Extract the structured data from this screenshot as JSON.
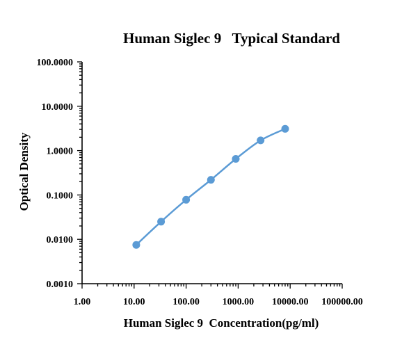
{
  "chart_data": {
    "type": "scatter",
    "title": "Human Siglec 9   Typical Standard",
    "xlabel": "Human Siglec 9  Concentration(pg/ml)",
    "ylabel": "Optical Density",
    "x_scale": "log",
    "y_scale": "log",
    "xlim": [
      1,
      100000
    ],
    "ylim": [
      0.001,
      100
    ],
    "x_tick_labels": [
      "1.00",
      "10.00",
      "100.00",
      "1000.00",
      "10000.00",
      "100000.00"
    ],
    "y_tick_labels": [
      "0.0010",
      "0.0100",
      "0.1000",
      "1.0000",
      "10.0000",
      "100.0000"
    ],
    "grid": false,
    "legend": "none",
    "series": [
      {
        "color": "#5b9bd5",
        "x": [
          11,
          33,
          100,
          300,
          900,
          2700,
          8000
        ],
        "y": [
          0.0075,
          0.025,
          0.078,
          0.22,
          0.65,
          1.7,
          3.1
        ]
      }
    ]
  }
}
